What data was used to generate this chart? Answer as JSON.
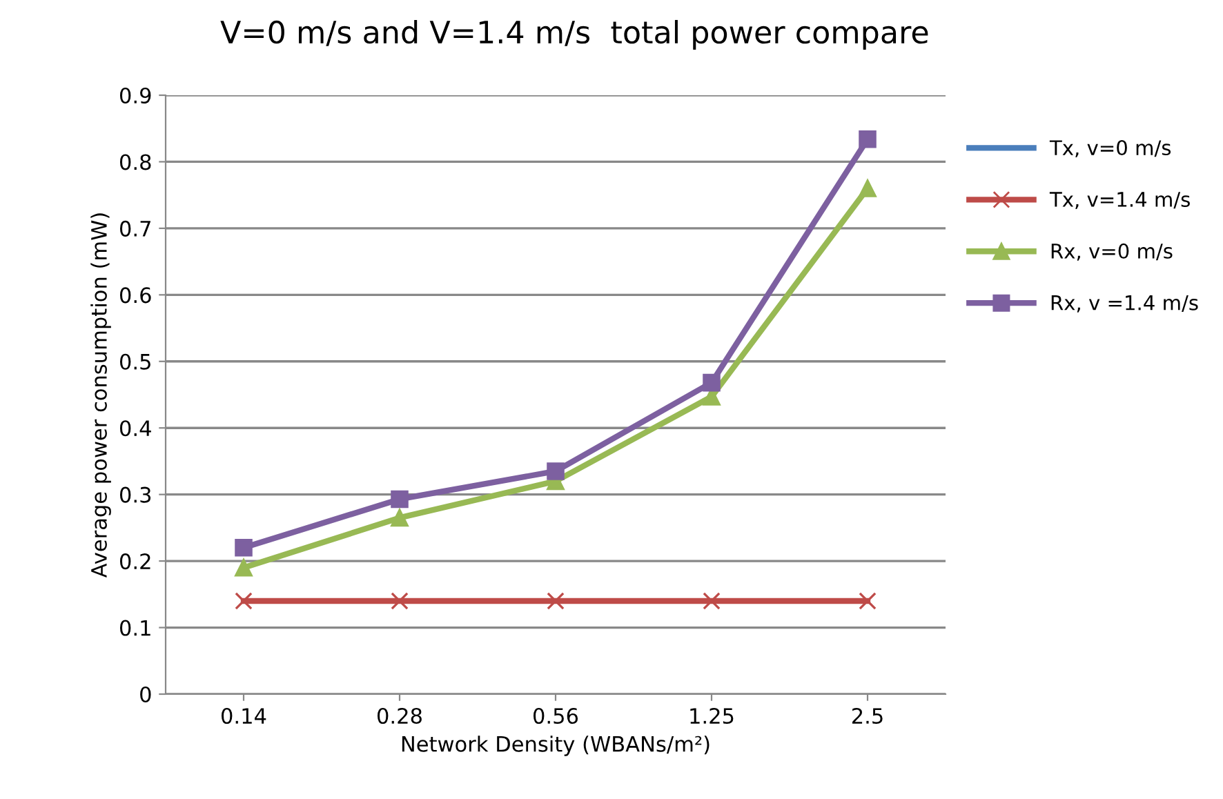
{
  "chart_data": {
    "type": "line",
    "title": "V=0 m/s and V=1.4 m/s  total power compare",
    "xlabel": "Network Density (WBANs/m²)",
    "ylabel": "Average power consumption (mW)",
    "categories": [
      "0.14",
      "0.28",
      "0.56",
      "1.25",
      "2.5"
    ],
    "series": [
      {
        "name": "Tx, v=0 m/s",
        "color": "#4a7ebb",
        "marker": "none",
        "values": [
          null,
          null,
          null,
          null,
          null
        ]
      },
      {
        "name": "Tx, v=1.4 m/s",
        "color": "#be4b48",
        "marker": "cross",
        "values": [
          0.14,
          0.14,
          0.14,
          0.14,
          0.14
        ]
      },
      {
        "name": "Rx, v=0 m/s",
        "color": "#98b954",
        "marker": "triangle",
        "values": [
          0.19,
          0.265,
          0.32,
          0.447,
          0.76
        ]
      },
      {
        "name": "Rx, v =1.4 m/s",
        "color": "#7d60a0",
        "marker": "square",
        "values": [
          0.22,
          0.293,
          0.335,
          0.468,
          0.834
        ]
      }
    ],
    "ylim": [
      0,
      0.9
    ],
    "yticks": [
      0,
      0.1,
      0.2,
      0.3,
      0.4,
      0.5,
      0.6,
      0.7,
      0.8,
      0.9
    ],
    "grid": "y",
    "legend": "right",
    "line_style": "solid"
  }
}
